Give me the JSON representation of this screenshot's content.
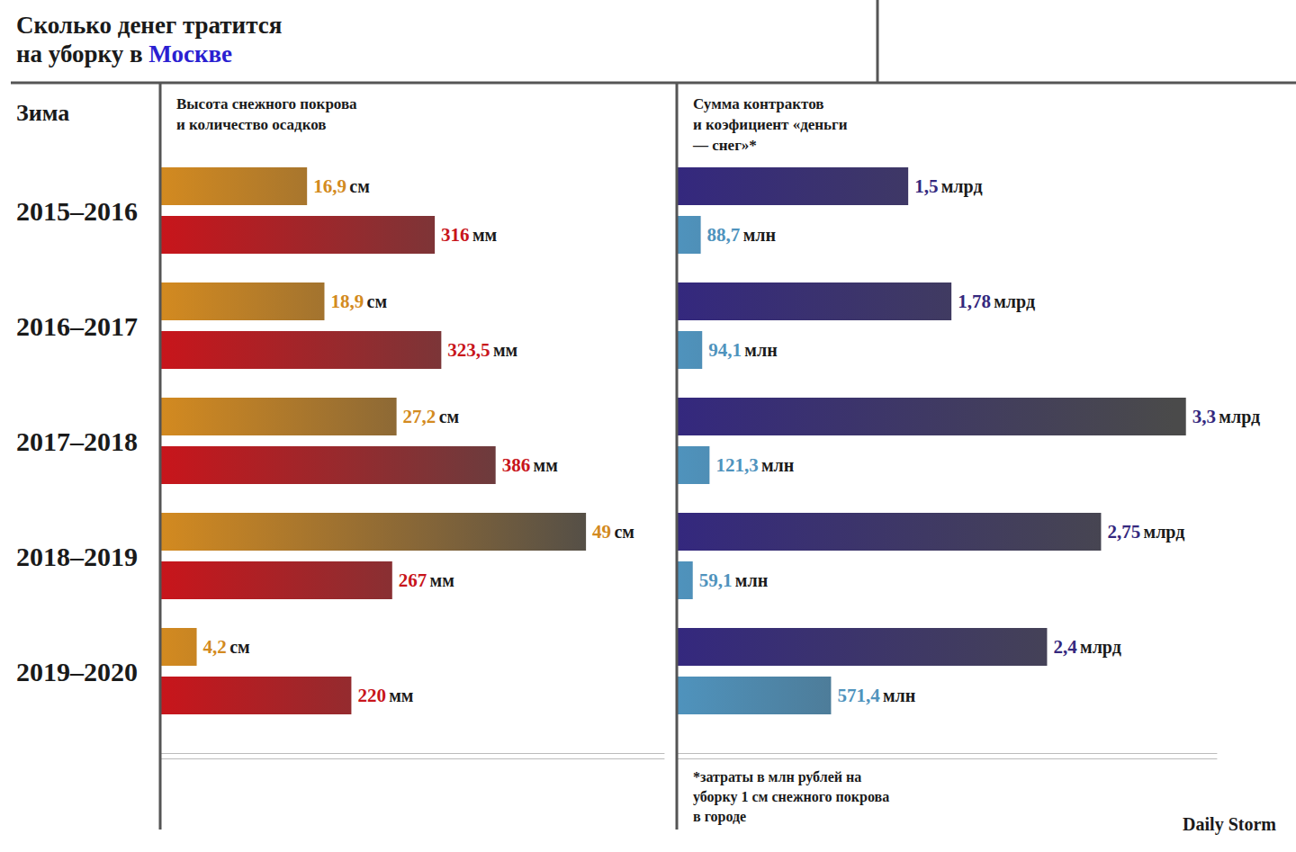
{
  "title": [
    "Сколько денег тратится",
    "на уборку в Москве"
  ],
  "title_highlight": "Москве",
  "category_header": "Зима",
  "source": "Daily Storm",
  "chart_data": [
    {
      "type": "bar",
      "orientation": "horizontal",
      "title": "Высота снежного покрова и количество осадков",
      "categories": [
        "2015–2016",
        "2016–2017",
        "2017–2018",
        "2018–2019",
        "2019–2020"
      ],
      "data_labels": true,
      "tick_labels": "y",
      "grid": false,
      "series": [
        {
          "color": "#d38a20",
          "unit": "см",
          "values": [
            16.9,
            18.9,
            27.2,
            49,
            4.2
          ],
          "value_labels": [
            "16,9",
            "18,9",
            "27,2",
            "49",
            "4,2"
          ],
          "xlim": [
            0,
            58
          ]
        },
        {
          "color": "#c8151b",
          "unit": "мм",
          "values": [
            316,
            323.5,
            386,
            267,
            220
          ],
          "value_labels": [
            "316",
            "323,5",
            "386",
            "267",
            "220"
          ],
          "xlim": [
            0,
            580
          ]
        }
      ]
    },
    {
      "type": "bar",
      "orientation": "horizontal",
      "title": "Сумма контрактов и коэфициент «деньги — снег»*",
      "note": "*затраты в млн рублей на уборку 1 см снежного покрова в городе",
      "categories": [
        "2015–2016",
        "2016–2017",
        "2017–2018",
        "2018–2019",
        "2019–2020"
      ],
      "data_labels": true,
      "tick_labels": false,
      "grid": false,
      "series": [
        {
          "color": "#34287e",
          "unit": "млрд",
          "values": [
            1.5,
            1.78,
            3.3,
            2.75,
            2.4
          ],
          "value_labels": [
            "1,5",
            "1,78",
            "3,3",
            "2,75",
            "2,4"
          ],
          "xlim": [
            0,
            3.5
          ]
        },
        {
          "color": "#4f93bd",
          "unit": "млн",
          "values": [
            88.7,
            94.1,
            121.3,
            59.1,
            571.4
          ],
          "value_labels": [
            "88,7",
            "94,1",
            "121,3",
            "59,1",
            "571,4"
          ],
          "xlim": [
            0,
            2000
          ]
        }
      ]
    }
  ]
}
